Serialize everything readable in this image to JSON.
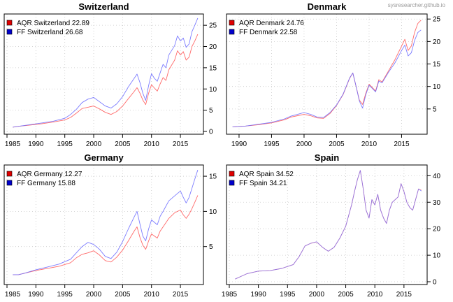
{
  "watermark": "sysresearcher.github.io",
  "chart_data": [
    {
      "type": "line",
      "title": "Switzerland",
      "legend_placement": "top-left",
      "grid": true,
      "xlim": [
        1985,
        2018.5
      ],
      "ylim": [
        0,
        27
      ],
      "xticks": [
        1985,
        1990,
        1995,
        2000,
        2005,
        2010,
        2015
      ],
      "yticks": [
        0,
        5,
        10,
        15,
        20,
        25
      ],
      "series": [
        {
          "name": "AQR Switzerland",
          "legend_label": "AQR Switzerland 22.89",
          "color": "#ff5a5a",
          "x": [
            1986,
            1987,
            1989,
            1991,
            1993,
            1995,
            1996,
            1997,
            1998,
            1999,
            2000,
            2001,
            2002,
            2003,
            2004,
            2005,
            2006,
            2007,
            2007.5,
            2008,
            2008.5,
            2009,
            2009.5,
            2010,
            2010.5,
            2011,
            2011.5,
            2012,
            2012.5,
            2013,
            2014,
            2014.5,
            2015,
            2015.5,
            2016,
            2016.5,
            2017,
            2017.5,
            2018
          ],
          "y": [
            1.0,
            1.2,
            1.5,
            1.8,
            2.2,
            2.7,
            3.3,
            4.3,
            5.4,
            5.7,
            6.0,
            5.3,
            4.5,
            4.0,
            4.7,
            6.0,
            7.7,
            9.4,
            10.3,
            9.0,
            7.4,
            6.3,
            9.0,
            11.0,
            10.2,
            9.5,
            11.2,
            12.7,
            12.0,
            14.5,
            16.8,
            19.0,
            18.0,
            18.8,
            16.8,
            17.5,
            20.0,
            21.3,
            22.89
          ]
        },
        {
          "name": "FF Switzerland",
          "legend_label": "FF Switzerland 26.68",
          "color": "#6f6fff",
          "x": [
            1986,
            1987,
            1989,
            1991,
            1993,
            1995,
            1996,
            1997,
            1998,
            1999,
            2000,
            2001,
            2002,
            2003,
            2004,
            2005,
            2006,
            2007,
            2007.5,
            2008,
            2008.5,
            2009,
            2009.5,
            2010,
            2010.5,
            2011,
            2011.5,
            2012,
            2012.5,
            2013,
            2014,
            2014.5,
            2015,
            2015.5,
            2016,
            2016.5,
            2017,
            2017.5,
            2018
          ],
          "y": [
            1.0,
            1.2,
            1.6,
            2.0,
            2.4,
            3.1,
            4.0,
            5.2,
            6.8,
            7.6,
            8.0,
            7.0,
            6.0,
            5.5,
            6.5,
            8.2,
            10.5,
            12.5,
            13.5,
            11.5,
            9.0,
            7.3,
            10.8,
            13.6,
            12.5,
            11.8,
            13.8,
            15.8,
            15.0,
            18.0,
            20.2,
            22.5,
            21.3,
            22.0,
            19.8,
            20.6,
            23.5,
            25.0,
            26.68
          ]
        }
      ]
    },
    {
      "type": "line",
      "title": "Denmark",
      "legend_placement": "top-left",
      "grid": true,
      "xlim": [
        1988.5,
        2018.5
      ],
      "ylim": [
        0,
        25.5
      ],
      "xticks": [
        1990,
        1995,
        2000,
        2005,
        2010,
        2015
      ],
      "yticks": [
        5,
        10,
        15,
        20,
        25
      ],
      "series": [
        {
          "name": "AQR Denmark",
          "legend_label": "AQR Denmark 24.76",
          "color": "#ff5a5a",
          "x": [
            1989,
            1991,
            1993,
            1995,
            1997,
            1998,
            1999,
            2000,
            2001,
            2002,
            2003,
            2004,
            2005,
            2006,
            2007,
            2007.5,
            2008,
            2008.5,
            2009,
            2009.5,
            2010,
            2011,
            2011.5,
            2012,
            2013,
            2014,
            2015,
            2015.5,
            2016,
            2016.5,
            2017,
            2017.5,
            2018
          ],
          "y": [
            1.0,
            1.2,
            1.5,
            1.9,
            2.6,
            3.2,
            3.5,
            3.8,
            3.5,
            3.0,
            2.9,
            4.0,
            5.8,
            8.2,
            11.8,
            13.0,
            10.0,
            7.0,
            6.0,
            8.5,
            10.5,
            9.0,
            11.5,
            11.0,
            13.5,
            16.0,
            19.0,
            20.5,
            18.0,
            19.0,
            22.0,
            24.0,
            24.76
          ]
        },
        {
          "name": "FF Denmark",
          "legend_label": "FF Denmark 22.58",
          "color": "#6f6fff",
          "x": [
            1989,
            1991,
            1993,
            1995,
            1997,
            1998,
            1999,
            2000,
            2001,
            2002,
            2003,
            2004,
            2005,
            2006,
            2007,
            2007.5,
            2008,
            2008.5,
            2009,
            2009.5,
            2010,
            2011,
            2011.5,
            2012,
            2013,
            2014,
            2015,
            2015.5,
            2016,
            2016.5,
            2017,
            2017.5,
            2018
          ],
          "y": [
            1.0,
            1.2,
            1.6,
            2.0,
            2.8,
            3.4,
            3.8,
            4.2,
            3.8,
            3.2,
            3.1,
            4.2,
            5.9,
            8.3,
            11.9,
            13.0,
            10.0,
            6.8,
            5.2,
            8.2,
            10.3,
            8.8,
            11.2,
            10.8,
            13.2,
            15.3,
            18.0,
            19.2,
            16.8,
            17.5,
            20.2,
            22.0,
            22.58
          ]
        }
      ]
    },
    {
      "type": "line",
      "title": "Germany",
      "legend_placement": "top-left",
      "grid": true,
      "xlim": [
        1985,
        2018.5
      ],
      "ylim": [
        0,
        16.2
      ],
      "xticks": [
        1985,
        1990,
        1995,
        2000,
        2005,
        2010,
        2015
      ],
      "yticks": [
        5,
        10,
        15
      ],
      "series": [
        {
          "name": "AQR Germany",
          "legend_label": "AQR Germany 12.27",
          "color": "#ff5a5a",
          "x": [
            1986,
            1987,
            1988,
            1990,
            1992,
            1994,
            1996,
            1997,
            1998,
            1999,
            2000,
            2001,
            2002,
            2003,
            2004,
            2005,
            2006,
            2007,
            2007.5,
            2008,
            2008.5,
            2009,
            2009.5,
            2010,
            2011,
            2011.5,
            2012,
            2013,
            2014,
            2015,
            2015.5,
            2016,
            2016.5,
            2017,
            2017.5,
            2018
          ],
          "y": [
            1.0,
            1.0,
            1.2,
            1.6,
            1.9,
            2.2,
            2.7,
            3.4,
            3.9,
            4.1,
            4.4,
            3.8,
            3.0,
            2.8,
            3.5,
            4.5,
            5.8,
            7.2,
            7.8,
            6.3,
            5.2,
            4.6,
            5.8,
            6.8,
            6.2,
            7.2,
            7.8,
            9.0,
            9.8,
            10.2,
            9.5,
            9.0,
            9.6,
            10.4,
            11.3,
            12.27
          ]
        },
        {
          "name": "FF Germany",
          "legend_label": "FF Germany 15.88",
          "color": "#6f6fff",
          "x": [
            1986,
            1987,
            1988,
            1990,
            1992,
            1994,
            1996,
            1997,
            1998,
            1999,
            2000,
            2001,
            2002,
            2003,
            2004,
            2005,
            2006,
            2007,
            2007.5,
            2008,
            2008.5,
            2009,
            2009.5,
            2010,
            2011,
            2011.5,
            2012,
            2013,
            2014,
            2015,
            2015.5,
            2016,
            2016.5,
            2017,
            2017.5,
            2018
          ],
          "y": [
            1.0,
            1.0,
            1.2,
            1.7,
            2.1,
            2.5,
            3.2,
            4.1,
            5.0,
            5.6,
            5.3,
            4.6,
            3.6,
            3.3,
            4.2,
            5.7,
            7.5,
            9.2,
            10.0,
            8.2,
            6.5,
            5.8,
            7.5,
            8.8,
            8.1,
            9.3,
            10.0,
            11.5,
            12.2,
            12.9,
            12.0,
            11.2,
            12.0,
            13.3,
            14.6,
            15.88
          ]
        }
      ]
    },
    {
      "type": "line",
      "title": "Spain",
      "legend_placement": "top-left",
      "grid": true,
      "xlim": [
        1985,
        2018.5
      ],
      "ylim": [
        0,
        43
      ],
      "xticks": [
        1985,
        1990,
        1995,
        2000,
        2005,
        2010,
        2015
      ],
      "yticks": [
        0,
        10,
        20,
        30,
        40
      ],
      "series": [
        {
          "name": "AQR Spain",
          "legend_label": "AQR Spain 34.52",
          "color": "#ff5a5a",
          "x": [
            1986,
            1987,
            1988,
            1990,
            1992,
            1994,
            1996,
            1997,
            1998,
            1999,
            2000,
            2001,
            2002,
            2003,
            2004,
            2005,
            2006,
            2006.5,
            2007,
            2007.5,
            2008,
            2008.5,
            2009,
            2009.5,
            2010,
            2010.5,
            2011,
            2011.5,
            2012,
            2012.5,
            2013,
            2014,
            2014.5,
            2015,
            2015.5,
            2016,
            2016.5,
            2017,
            2017.5,
            2018
          ],
          "y": [
            1.0,
            2.0,
            3.0,
            4.0,
            4.2,
            5.0,
            6.5,
            9.5,
            13.5,
            14.5,
            15.0,
            13.0,
            11.5,
            13.0,
            16.5,
            21.0,
            29.0,
            34.0,
            38.5,
            42.0,
            35.0,
            27.0,
            24.0,
            31.0,
            29.0,
            33.0,
            27.0,
            24.0,
            22.0,
            27.0,
            30.0,
            32.0,
            37.0,
            34.0,
            30.0,
            28.0,
            27.0,
            31.0,
            35.0,
            34.52
          ]
        },
        {
          "name": "FF Spain",
          "legend_label": "FF Spain 34.21",
          "color": "#6f6fff",
          "x": [
            1986,
            1987,
            1988,
            1990,
            1992,
            1994,
            1996,
            1997,
            1998,
            1999,
            2000,
            2001,
            2002,
            2003,
            2004,
            2005,
            2006,
            2006.5,
            2007,
            2007.5,
            2008,
            2008.5,
            2009,
            2009.5,
            2010,
            2010.5,
            2011,
            2011.5,
            2012,
            2012.5,
            2013,
            2014,
            2014.5,
            2015,
            2015.5,
            2016,
            2016.5,
            2017,
            2017.5,
            2018
          ],
          "y": [
            1.0,
            2.0,
            3.0,
            4.0,
            4.2,
            5.0,
            6.5,
            9.5,
            13.5,
            14.5,
            15.1,
            13.0,
            11.5,
            13.0,
            16.5,
            21.0,
            29.0,
            34.0,
            38.5,
            42.0,
            35.0,
            27.0,
            24.0,
            31.0,
            29.0,
            33.0,
            27.0,
            24.0,
            22.0,
            27.0,
            30.0,
            32.0,
            37.0,
            34.0,
            30.0,
            28.0,
            27.0,
            31.0,
            35.0,
            34.21
          ]
        }
      ]
    }
  ]
}
